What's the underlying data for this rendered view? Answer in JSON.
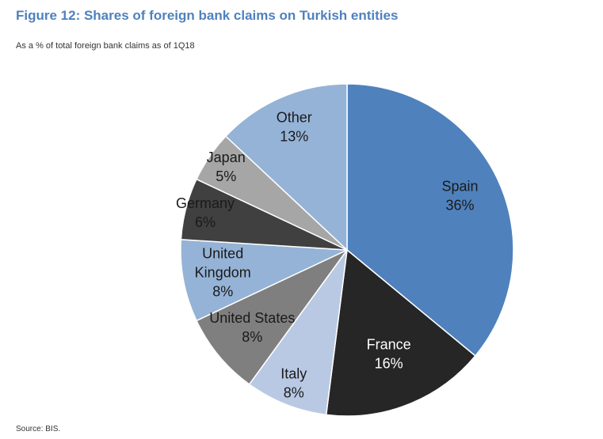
{
  "title": "Figure 12: Shares of foreign bank claims on Turkish entities",
  "subtitle": "As a % of total foreign bank claims as of 1Q18",
  "source": "Source: BIS.",
  "chart_data": {
    "type": "pie",
    "title": "Figure 12: Shares of foreign bank claims on Turkish entities",
    "subtitle": "As a % of total foreign bank claims as of 1Q18",
    "slices": [
      {
        "label": "Spain",
        "value": 36,
        "value_label": "36%",
        "color": "#4f81bd",
        "text_color": "#1a1a1a"
      },
      {
        "label": "France",
        "value": 16,
        "value_label": "16%",
        "color": "#262626",
        "text_color": "#ffffff"
      },
      {
        "label": "Italy",
        "value": 8,
        "value_label": "8%",
        "color": "#b9c9e4",
        "text_color": "#1a1a1a"
      },
      {
        "label": "United States",
        "value": 8,
        "value_label": "8%",
        "color": "#7f7f7f",
        "text_color": "#1a1a1a"
      },
      {
        "label": "United Kingdom",
        "value": 8,
        "value_label": "8%",
        "color": "#95b3d7",
        "text_color": "#1a1a1a"
      },
      {
        "label": "Germany",
        "value": 6,
        "value_label": "6%",
        "color": "#404040",
        "text_color": "#1a1a1a"
      },
      {
        "label": "Japan",
        "value": 5,
        "value_label": "5%",
        "color": "#a6a6a6",
        "text_color": "#1a1a1a"
      },
      {
        "label": "Other",
        "value": 13,
        "value_label": "13%",
        "color": "#95b3d7",
        "text_color": "#1a1a1a"
      }
    ],
    "start": "12 o'clock",
    "direction": "clockwise",
    "legend": "none",
    "source": "Source: BIS."
  }
}
